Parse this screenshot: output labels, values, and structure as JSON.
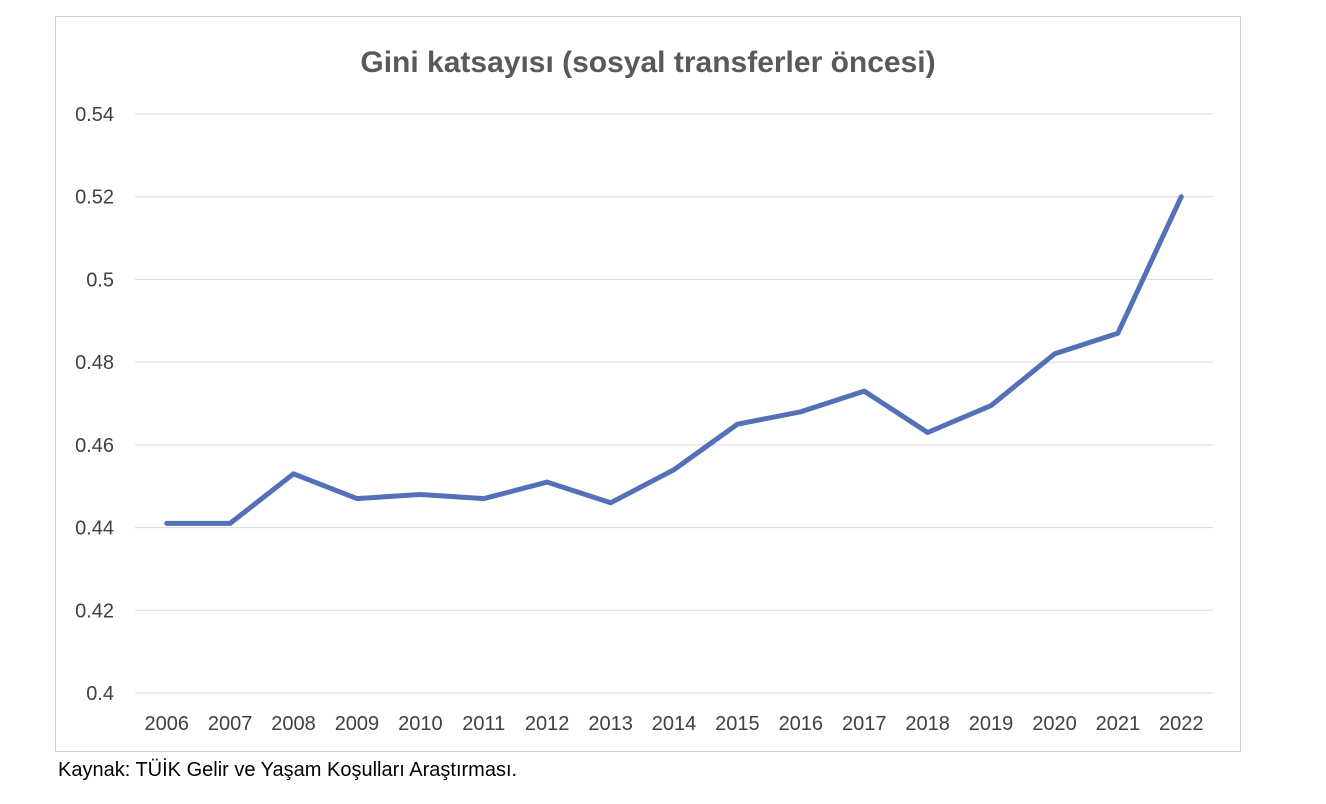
{
  "chart_data": {
    "type": "line",
    "title": "Gini katsayısı (sosyal transferler öncesi)",
    "xlabel": "",
    "ylabel": "",
    "x": [
      "2006",
      "2007",
      "2008",
      "2009",
      "2010",
      "2011",
      "2012",
      "2013",
      "2014",
      "2015",
      "2016",
      "2017",
      "2018",
      "2019",
      "2020",
      "2021",
      "2022"
    ],
    "series": [
      {
        "values": [
          0.441,
          0.441,
          0.453,
          0.447,
          0.448,
          0.447,
          0.451,
          0.446,
          0.454,
          0.465,
          0.468,
          0.473,
          0.463,
          0.4695,
          0.482,
          0.487,
          0.52
        ],
        "color": "#5470b8"
      }
    ],
    "ylim": [
      0.4,
      0.54
    ],
    "y_ticks": [
      "0.4",
      "0.42",
      "0.44",
      "0.46",
      "0.48",
      "0.5",
      "0.52",
      "0.54"
    ],
    "grid": "horizontal",
    "legend": "none"
  },
  "source_note": "Kaynak: TÜİK Gelir ve Yaşam Koşulları Araştırması."
}
